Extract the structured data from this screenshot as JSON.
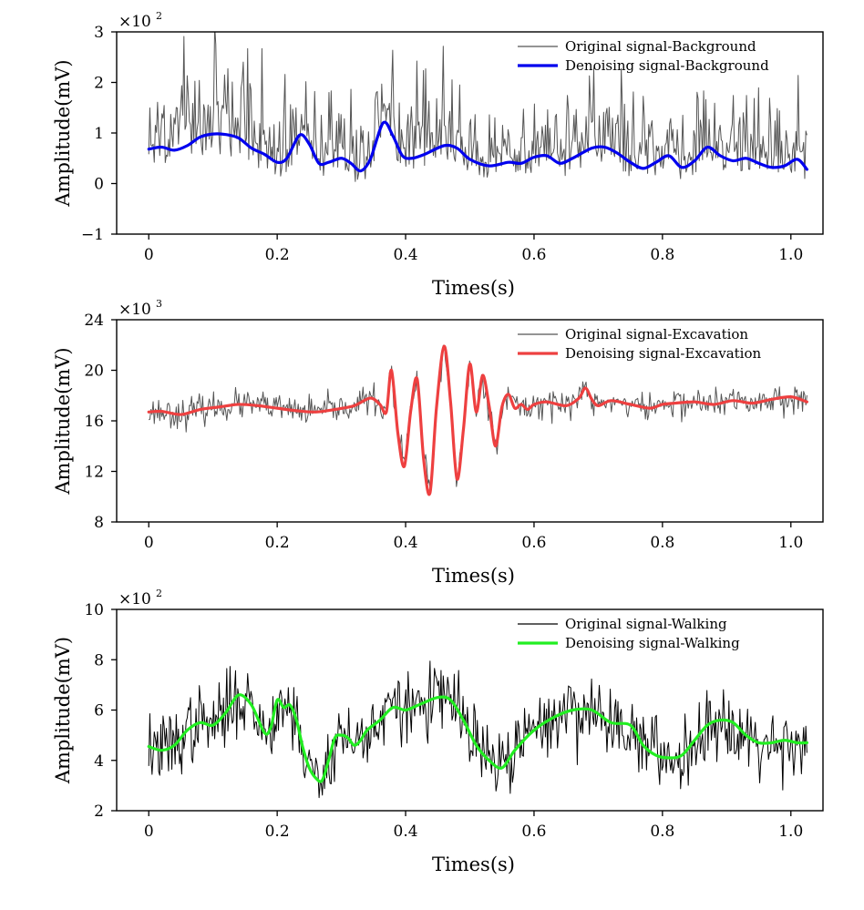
{
  "chart_data": [
    {
      "type": "line",
      "xlabel": "Times(s)",
      "ylabel": "Amplitude(mV)",
      "scale_factor": "×10",
      "scale_exponent": "2",
      "xlim": [
        -0.05,
        1.05
      ],
      "ylim": [
        -1,
        3
      ],
      "x_ticks": [
        0,
        0.2,
        0.4,
        0.6,
        0.8,
        1.0
      ],
      "x_tick_labels": [
        "0",
        "0.2",
        "0.4",
        "0.6",
        "0.8",
        "1.0"
      ],
      "y_ticks": [
        -1,
        0,
        1,
        2,
        3
      ],
      "y_tick_labels": [
        "−1",
        "0",
        "1",
        "2",
        "3"
      ],
      "legend_position": "top-right",
      "grid": false,
      "series": [
        {
          "name": "Original signal-Background",
          "role": "noisy",
          "color": "#555555",
          "seed": 11,
          "noise_sd": 0.55,
          "noise_mode": "upper",
          "x_end": 1.025,
          "points": 600,
          "envelope_x": [
            0,
            0.1,
            0.2,
            0.3,
            0.4,
            0.5,
            0.6,
            0.7,
            0.8,
            0.9,
            1.025
          ],
          "envelope_y": [
            1.0,
            1.25,
            0.9,
            0.85,
            1.05,
            0.8,
            0.8,
            0.85,
            0.8,
            0.8,
            0.7
          ]
        },
        {
          "name": "Denoising signal-Background",
          "role": "smooth",
          "color": "#0000ee",
          "x": [
            0,
            0.02,
            0.04,
            0.06,
            0.08,
            0.1,
            0.12,
            0.14,
            0.16,
            0.18,
            0.2,
            0.215,
            0.235,
            0.25,
            0.265,
            0.28,
            0.3,
            0.315,
            0.33,
            0.345,
            0.365,
            0.38,
            0.395,
            0.41,
            0.43,
            0.46,
            0.48,
            0.5,
            0.53,
            0.56,
            0.58,
            0.6,
            0.62,
            0.64,
            0.66,
            0.69,
            0.71,
            0.73,
            0.75,
            0.77,
            0.79,
            0.81,
            0.83,
            0.85,
            0.87,
            0.89,
            0.91,
            0.93,
            0.95,
            0.97,
            0.99,
            1.01,
            1.025
          ],
          "y": [
            0.68,
            0.72,
            0.66,
            0.75,
            0.92,
            0.98,
            0.97,
            0.9,
            0.7,
            0.58,
            0.42,
            0.5,
            0.96,
            0.78,
            0.4,
            0.42,
            0.5,
            0.4,
            0.25,
            0.48,
            1.2,
            0.95,
            0.55,
            0.5,
            0.58,
            0.75,
            0.7,
            0.48,
            0.35,
            0.42,
            0.4,
            0.52,
            0.55,
            0.4,
            0.5,
            0.7,
            0.72,
            0.6,
            0.42,
            0.3,
            0.42,
            0.55,
            0.32,
            0.45,
            0.72,
            0.55,
            0.45,
            0.5,
            0.4,
            0.32,
            0.35,
            0.48,
            0.28
          ]
        }
      ]
    },
    {
      "type": "line",
      "xlabel": "Times(s)",
      "ylabel": "Amplitude(mV)",
      "scale_factor": "×10",
      "scale_exponent": "3",
      "xlim": [
        -0.05,
        1.05
      ],
      "ylim": [
        8,
        24
      ],
      "x_ticks": [
        0,
        0.2,
        0.4,
        0.6,
        0.8,
        1.0
      ],
      "x_tick_labels": [
        "0",
        "0.2",
        "0.4",
        "0.6",
        "0.8",
        "1.0"
      ],
      "y_ticks": [
        8,
        12,
        16,
        20,
        24
      ],
      "y_tick_labels": [
        "8",
        "12",
        "16",
        "20",
        "24"
      ],
      "legend_position": "top-right",
      "grid": false,
      "series": [
        {
          "name": "Original signal-Excavation",
          "role": "noisy",
          "color": "#555555",
          "seed": 23,
          "noise_sd": 0.55,
          "noise_mode": "symmetric",
          "x_end": 1.025,
          "points": 600
        },
        {
          "name": "Denoising signal-Excavation",
          "role": "smooth",
          "color": "#ee4040",
          "x": [
            0,
            0.02,
            0.05,
            0.08,
            0.11,
            0.14,
            0.17,
            0.2,
            0.23,
            0.26,
            0.29,
            0.32,
            0.345,
            0.36,
            0.37,
            0.378,
            0.388,
            0.398,
            0.408,
            0.418,
            0.428,
            0.438,
            0.448,
            0.46,
            0.47,
            0.48,
            0.49,
            0.5,
            0.51,
            0.52,
            0.53,
            0.54,
            0.55,
            0.56,
            0.57,
            0.58,
            0.59,
            0.6,
            0.62,
            0.65,
            0.67,
            0.68,
            0.69,
            0.7,
            0.72,
            0.75,
            0.78,
            0.8,
            0.82,
            0.85,
            0.88,
            0.91,
            0.94,
            0.97,
            1.0,
            1.025
          ],
          "y": [
            16.7,
            16.75,
            16.5,
            16.9,
            17.1,
            17.3,
            17.2,
            17.0,
            16.8,
            16.7,
            16.9,
            17.2,
            17.8,
            17.3,
            16.7,
            20.0,
            15.0,
            12.4,
            16.8,
            19.3,
            13.0,
            10.3,
            17.0,
            21.9,
            17.5,
            11.4,
            15.3,
            20.5,
            16.7,
            19.6,
            17.2,
            14.0,
            17.1,
            18.1,
            17.0,
            17.3,
            16.9,
            17.3,
            17.5,
            17.2,
            17.8,
            18.6,
            17.7,
            17.2,
            17.6,
            17.3,
            17.0,
            17.3,
            17.4,
            17.5,
            17.3,
            17.6,
            17.4,
            17.7,
            17.9,
            17.5
          ]
        }
      ]
    },
    {
      "type": "line",
      "xlabel": "Times(s)",
      "ylabel": "Amplitude(mV)",
      "scale_factor": "×10",
      "scale_exponent": "2",
      "xlim": [
        -0.05,
        1.05
      ],
      "ylim": [
        2,
        10
      ],
      "x_ticks": [
        0,
        0.2,
        0.4,
        0.6,
        0.8,
        1.0
      ],
      "x_tick_labels": [
        "0",
        "0.2",
        "0.4",
        "0.6",
        "0.8",
        "1.0"
      ],
      "y_ticks": [
        2,
        4,
        6,
        8,
        10
      ],
      "y_tick_labels": [
        "2",
        "4",
        "6",
        "8",
        "10"
      ],
      "legend_position": "top-right",
      "grid": false,
      "series": [
        {
          "name": "Original signal-Walking",
          "role": "noisy",
          "color": "#000000",
          "seed": 37,
          "noise_sd": 0.7,
          "noise_mode": "symmetric",
          "x_end": 1.025,
          "points": 600
        },
        {
          "name": "Denoising signal-Walking",
          "role": "smooth",
          "color": "#22ee22",
          "x": [
            0,
            0.02,
            0.04,
            0.06,
            0.08,
            0.1,
            0.12,
            0.14,
            0.16,
            0.18,
            0.19,
            0.2,
            0.21,
            0.22,
            0.23,
            0.24,
            0.25,
            0.26,
            0.27,
            0.28,
            0.29,
            0.3,
            0.31,
            0.32,
            0.33,
            0.34,
            0.36,
            0.38,
            0.4,
            0.42,
            0.45,
            0.47,
            0.49,
            0.51,
            0.53,
            0.55,
            0.57,
            0.6,
            0.63,
            0.66,
            0.69,
            0.72,
            0.75,
            0.77,
            0.79,
            0.81,
            0.83,
            0.85,
            0.87,
            0.89,
            0.91,
            0.93,
            0.95,
            0.97,
            0.99,
            1.01,
            1.025
          ],
          "y": [
            4.55,
            4.4,
            4.6,
            5.2,
            5.5,
            5.4,
            5.9,
            6.6,
            6.2,
            5.1,
            5.3,
            6.4,
            6.1,
            6.2,
            5.6,
            4.5,
            3.7,
            3.3,
            3.2,
            4.0,
            4.9,
            5.0,
            4.9,
            4.6,
            4.8,
            5.2,
            5.6,
            6.1,
            6.0,
            6.2,
            6.5,
            6.4,
            5.6,
            4.6,
            4.0,
            3.7,
            4.4,
            5.2,
            5.7,
            6.0,
            6.0,
            5.5,
            5.4,
            4.6,
            4.2,
            4.1,
            4.2,
            4.8,
            5.4,
            5.6,
            5.5,
            5.0,
            4.7,
            4.7,
            4.8,
            4.7,
            4.7
          ]
        }
      ]
    }
  ]
}
